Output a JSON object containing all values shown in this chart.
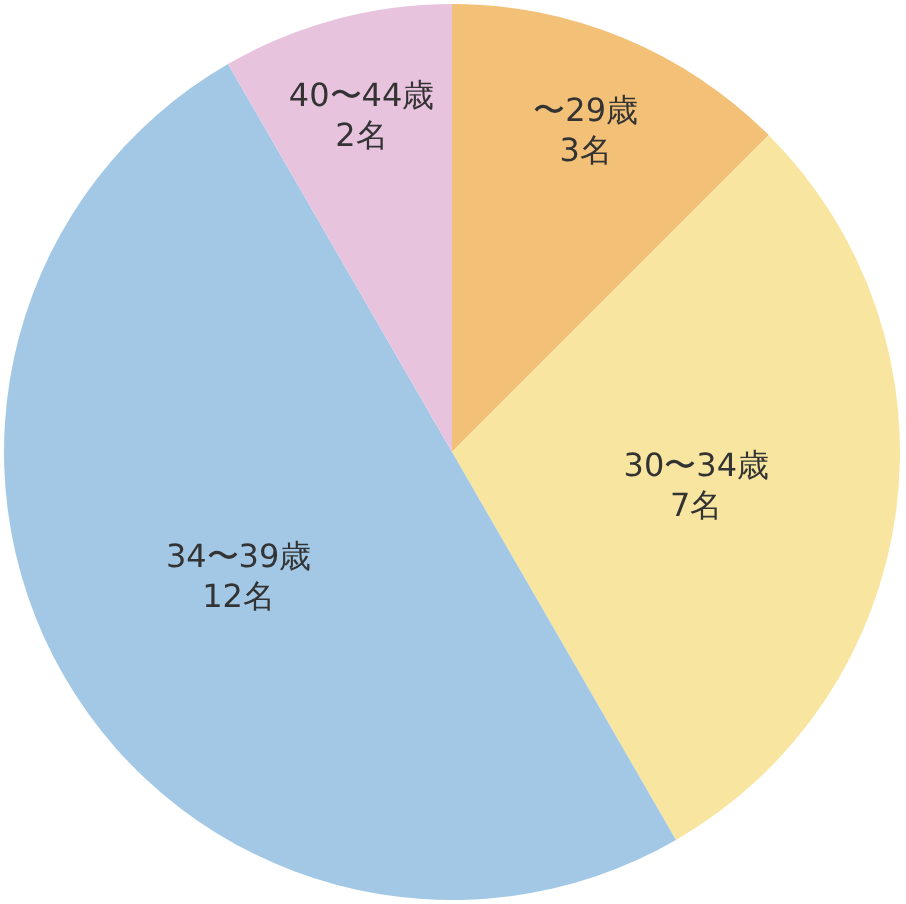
{
  "chart_data": {
    "type": "pie",
    "categories": [
      "〜29歳",
      "30〜34歳",
      "34〜39歳",
      "40〜44歳"
    ],
    "values": [
      3,
      7,
      12,
      2
    ],
    "value_labels": [
      "3名",
      "7名",
      "12名",
      "2名"
    ],
    "colors": [
      "#f2c077",
      "#f8e6a0",
      "#a3c8e6",
      "#e8c3de"
    ]
  }
}
